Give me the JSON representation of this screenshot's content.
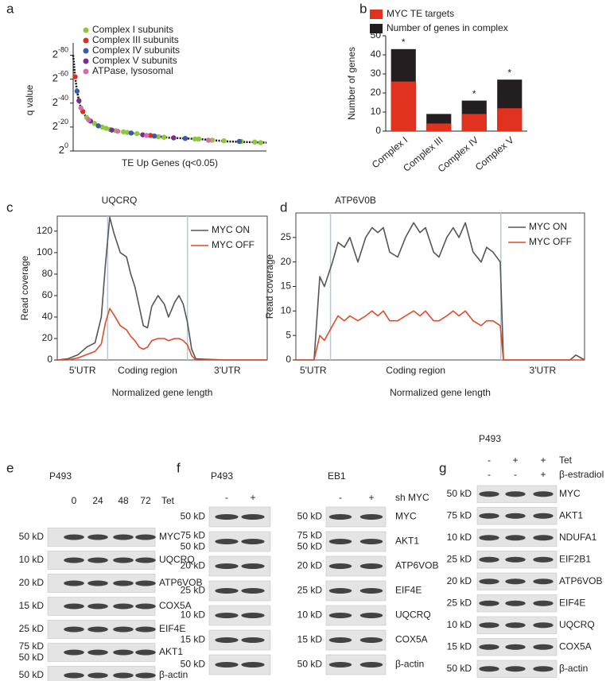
{
  "panel_labels": [
    "a",
    "b",
    "c",
    "d",
    "e",
    "f",
    "g"
  ],
  "chart_data": [
    {
      "type": "scatter",
      "ylabel": "q value",
      "xlabel": "TE Up Genes (q<0.05)",
      "xlim": [
        0,
        100
      ],
      "ylim": [
        0,
        -85
      ],
      "yticks": [
        {
          "value": -80,
          "base": "2",
          "exponent": "-80"
        },
        {
          "value": -60,
          "base": "2",
          "exponent": "-60"
        },
        {
          "value": -40,
          "base": "2",
          "exponent": "-40"
        },
        {
          "value": -20,
          "base": "2",
          "exponent": "-20"
        },
        {
          "value": 0,
          "base": "2",
          "exponent": "0"
        }
      ],
      "legend": "upper left",
      "curve": {
        "color": "#111111",
        "x": [
          0,
          1,
          2,
          3,
          4,
          6,
          8,
          12,
          18,
          25,
          35,
          50,
          65,
          80,
          100
        ],
        "values": [
          -80,
          -62,
          -50,
          -42,
          -36,
          -30,
          -26,
          -22,
          -18,
          -16,
          -14,
          -11,
          -10,
          -8,
          -7
        ]
      },
      "series": [
        {
          "name": "Complex I subunits",
          "color": "#8dc63f",
          "x": [
            7,
            11,
            15,
            17,
            19,
            22,
            26,
            28,
            33,
            44,
            47,
            63,
            65,
            72,
            78,
            87,
            94,
            97
          ],
          "values": [
            -28,
            -23,
            -20,
            -19,
            -18,
            -17,
            -16,
            -15.5,
            -14.5,
            -12,
            -11.5,
            -10,
            -10,
            -9,
            -8.5,
            -8,
            -7.5,
            -7
          ]
        },
        {
          "name": "Complex III subunits",
          "color": "#d7301f",
          "x": [
            1,
            5,
            40
          ],
          "values": [
            -62,
            -33,
            -13
          ]
        },
        {
          "name": "Complex IV subunits",
          "color": "#3d5aa8",
          "x": [
            2,
            13,
            30,
            42,
            58,
            86
          ],
          "values": [
            -50,
            -21,
            -15,
            -12.5,
            -10.5,
            -8
          ]
        },
        {
          "name": "Complex V subunits",
          "color": "#7b2d8e",
          "x": [
            3,
            9,
            20,
            36,
            52
          ],
          "values": [
            -42,
            -25,
            -17.5,
            -13.5,
            -11
          ]
        },
        {
          "name": "ATPase, lysosomal",
          "color": "#d36fa8",
          "x": [
            4,
            8,
            23,
            38,
            70
          ],
          "values": [
            -36,
            -26,
            -16.5,
            -13,
            -9
          ]
        }
      ]
    },
    {
      "type": "bar",
      "overlay": true,
      "ylabel": "Number of genes",
      "categories": [
        "Complex I",
        "Complex III",
        "Complex IV",
        "Complex V"
      ],
      "series": [
        {
          "name": "MYC TE targets",
          "color": "#e0321e",
          "values": [
            26,
            4,
            9,
            12
          ]
        },
        {
          "name": "Number of genes in complex",
          "color": "#231f20",
          "values": [
            43,
            9,
            16,
            27
          ]
        }
      ],
      "annotations": [
        "*",
        null,
        "*",
        "*"
      ],
      "ylim": [
        0,
        50
      ],
      "yticks": [
        0,
        10,
        20,
        30,
        40,
        50
      ],
      "legend": "top"
    },
    {
      "type": "line",
      "title": "UQCRQ",
      "ylabel": "Read coverage",
      "xlabel": "Normalized gene length",
      "regions": [
        "5'UTR",
        "Coding region",
        "3'UTR"
      ],
      "region_boundaries": [
        24,
        62
      ],
      "xlim": [
        0,
        100
      ],
      "ylim": [
        0,
        134
      ],
      "yticks": [
        0,
        20,
        40,
        60,
        80,
        100,
        120
      ],
      "legend": "upper right",
      "x": [
        0,
        5,
        10,
        14,
        18,
        21,
        23,
        25,
        27,
        30,
        33,
        35,
        37,
        39,
        41,
        43,
        45,
        48,
        51,
        53,
        56,
        58,
        60,
        62,
        64,
        66,
        80,
        100
      ],
      "series": [
        {
          "name": "MYC ON",
          "color": "#555555",
          "values": [
            0,
            1,
            5,
            12,
            16,
            40,
            90,
            133,
            118,
            100,
            96,
            80,
            68,
            50,
            32,
            30,
            50,
            60,
            52,
            40,
            54,
            60,
            52,
            35,
            10,
            1,
            0,
            0
          ]
        },
        {
          "name": "MYC OFF",
          "color": "#e04a2a",
          "values": [
            0,
            0,
            2,
            5,
            8,
            15,
            35,
            48,
            42,
            32,
            28,
            22,
            18,
            12,
            10,
            12,
            18,
            20,
            20,
            18,
            20,
            20,
            18,
            14,
            4,
            0,
            0,
            0
          ]
        }
      ]
    },
    {
      "type": "line",
      "title": "ATP6V0B",
      "ylabel": "Read coverage",
      "xlabel": "Normalized gene length",
      "regions": [
        "5'UTR",
        "Coding region",
        "3'UTR"
      ],
      "region_boundaries": [
        12,
        71
      ],
      "xlim": [
        0,
        100
      ],
      "ylim": [
        0,
        30
      ],
      "yticks": [
        0,
        5,
        10,
        15,
        20,
        25
      ],
      "legend": "upper right",
      "x": [
        0,
        6.3,
        8.3,
        9.9,
        12.7,
        14.6,
        16.8,
        18.7,
        21.5,
        24.2,
        26.4,
        28.4,
        30.3,
        32.5,
        35.3,
        38,
        40.8,
        43,
        44.9,
        47.7,
        49.6,
        52.3,
        54.5,
        56.5,
        58.7,
        61.4,
        64.2,
        66.1,
        68.3,
        70.8,
        71.9,
        85,
        95,
        97,
        100
      ],
      "series": [
        {
          "name": "MYC ON",
          "color": "#555555",
          "values": [
            0,
            0,
            17,
            15,
            20,
            24,
            23,
            25,
            20,
            25,
            27,
            26,
            27,
            22,
            21,
            25,
            28,
            26,
            27,
            22,
            21,
            25,
            27,
            25,
            28,
            22,
            20,
            23,
            22,
            20,
            0,
            0,
            0,
            1,
            0
          ]
        },
        {
          "name": "MYC OFF",
          "color": "#e04a2a",
          "values": [
            0,
            0,
            5,
            4,
            7,
            9,
            8,
            9,
            8,
            9,
            10,
            9,
            10,
            8,
            8,
            9,
            10,
            9,
            10,
            8,
            8,
            9,
            10,
            9,
            10,
            8,
            7,
            8,
            8,
            7,
            0,
            0,
            0,
            0,
            0
          ]
        }
      ]
    }
  ],
  "blots": [
    {
      "cell": "P493",
      "conditions": [
        {
          "name": "Tet",
          "lanes": [
            "0",
            "24",
            "48",
            "72"
          ]
        }
      ],
      "markers": [
        [
          "50 kD"
        ],
        [
          "10 kD"
        ],
        [
          "20 kD"
        ],
        [
          "15 kD"
        ],
        [
          "25 kD"
        ],
        [
          "75 kD",
          "50 kD"
        ],
        [
          "50 kD"
        ]
      ],
      "proteins": [
        "MYC",
        "UQCRQ",
        "ATP6VOB",
        "COX5A",
        "EIF4E",
        "AKT1",
        "β-actin"
      ]
    },
    {
      "cell": "P493",
      "conditions": [
        {
          "lanes": [
            "-",
            "+"
          ]
        }
      ],
      "markers": [
        [
          "50 kD"
        ],
        [
          "75 kD",
          "50 kD"
        ],
        [
          "20 kD"
        ],
        [
          "25 kD"
        ],
        [
          "10 kD"
        ],
        [
          "15 kD"
        ],
        [
          "50 kD"
        ]
      ]
    },
    {
      "cell": "EB1",
      "conditions": [
        {
          "name": "sh MYC",
          "lanes": [
            "-",
            "+"
          ]
        }
      ],
      "markers": [
        [
          "50 kD"
        ],
        [
          "75 kD",
          "50 kD"
        ],
        [
          "20 kD"
        ],
        [
          "25 kD"
        ],
        [
          "10 kD"
        ],
        [
          "15 kD"
        ],
        [
          "50 kD"
        ]
      ],
      "proteins": [
        "MYC",
        "AKT1",
        "ATP6VOB",
        "EIF4E",
        "UQCRQ",
        "COX5A",
        "β-actin"
      ]
    },
    {
      "cell": "P493",
      "conditions": [
        {
          "name": "Tet",
          "lanes": [
            "-",
            "+",
            "+"
          ]
        },
        {
          "name": "β-estradiol",
          "lanes": [
            "-",
            "-",
            "+"
          ]
        }
      ],
      "markers": [
        [
          "50 kD"
        ],
        [
          "75 kD"
        ],
        [
          "10 kD"
        ],
        [
          "25 kD"
        ],
        [
          "20 kD"
        ],
        [
          "25 kD"
        ],
        [
          "10 kD"
        ],
        [
          "15 kD"
        ],
        [
          "50 kD"
        ]
      ],
      "proteins": [
        "MYC",
        "AKT1",
        "NDUFA1",
        "EIF2B1",
        "ATP6VOB",
        "EIF4E",
        "UQCRQ",
        "COX5A",
        "β-actin"
      ]
    }
  ]
}
